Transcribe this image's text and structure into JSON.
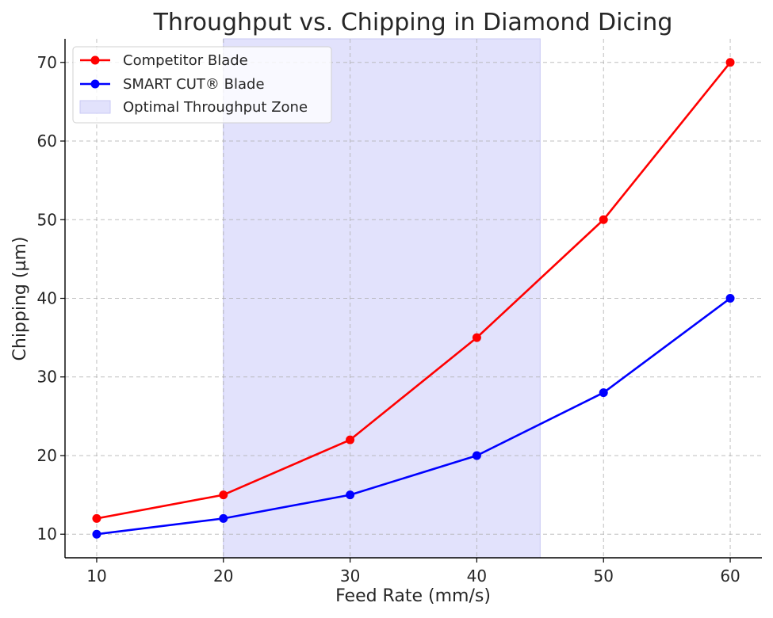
{
  "chart_data": {
    "type": "line",
    "title": "Throughput vs. Chipping in Diamond Dicing",
    "xlabel": "Feed Rate (mm/s)",
    "ylabel": "Chipping (µm)",
    "x": [
      10,
      20,
      30,
      40,
      50,
      60
    ],
    "xlim": [
      7.5,
      62.5
    ],
    "ylim": [
      7,
      73
    ],
    "xticks": [
      10,
      20,
      30,
      40,
      50,
      60
    ],
    "yticks": [
      10,
      20,
      30,
      40,
      50,
      60,
      70
    ],
    "grid": true,
    "legend_position": "top-left",
    "series": [
      {
        "name": "Competitor Blade",
        "color": "#ff0000",
        "values": [
          12,
          15,
          22,
          35,
          50,
          70
        ]
      },
      {
        "name": "SMART CUT® Blade",
        "color": "#0000ff",
        "values": [
          10,
          12,
          15,
          20,
          28,
          40
        ]
      }
    ],
    "shaded_region": {
      "name": "Optimal Throughput Zone",
      "x_range": [
        20,
        45
      ],
      "color": "#e2e2fc",
      "edge_color": "#c9c9f5"
    }
  }
}
